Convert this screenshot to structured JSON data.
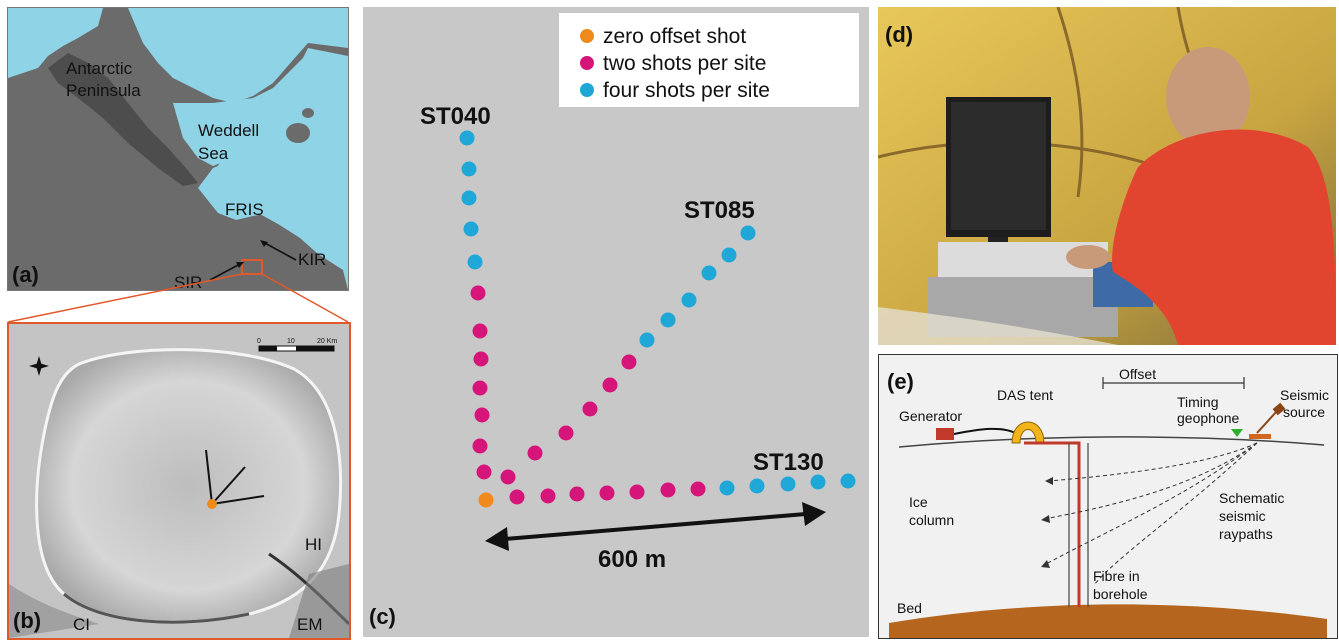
{
  "panel_a": {
    "label": "(a)",
    "places": [
      "Antarctic",
      "Peninsula",
      "Weddell",
      "Sea",
      "FRIS",
      "KIR",
      "SIR"
    ]
  },
  "panel_b": {
    "label": "(b)",
    "scale_ticks": [
      "0",
      "10",
      "20 Km"
    ],
    "places": [
      "CI",
      "HI",
      "EM"
    ]
  },
  "panel_c": {
    "label": "(c)",
    "legend": [
      "zero offset shot",
      "two shots per site",
      "four shots per site"
    ],
    "lines": [
      "ST040",
      "ST085",
      "ST130"
    ],
    "distance_label": "600 m",
    "colors": {
      "zero": "#f08a1c",
      "two": "#d6157a",
      "four": "#1fa7d8"
    }
  },
  "panel_d": {
    "label": "(d)"
  },
  "panel_e": {
    "label": "(e)",
    "labels": {
      "offset": "Offset",
      "das_tent": "DAS tent",
      "generator": "Generator",
      "timing_1": "Timing",
      "timing_2": "geophone",
      "seismic_1": "Seismic",
      "seismic_2": "source",
      "ice_1": "Ice",
      "ice_2": "column",
      "schematic_1": "Schematic",
      "schematic_2": "seismic",
      "schematic_3": "raypaths",
      "fibre_1": "Fibre in",
      "fibre_2": "borehole",
      "bed": "Bed"
    }
  }
}
